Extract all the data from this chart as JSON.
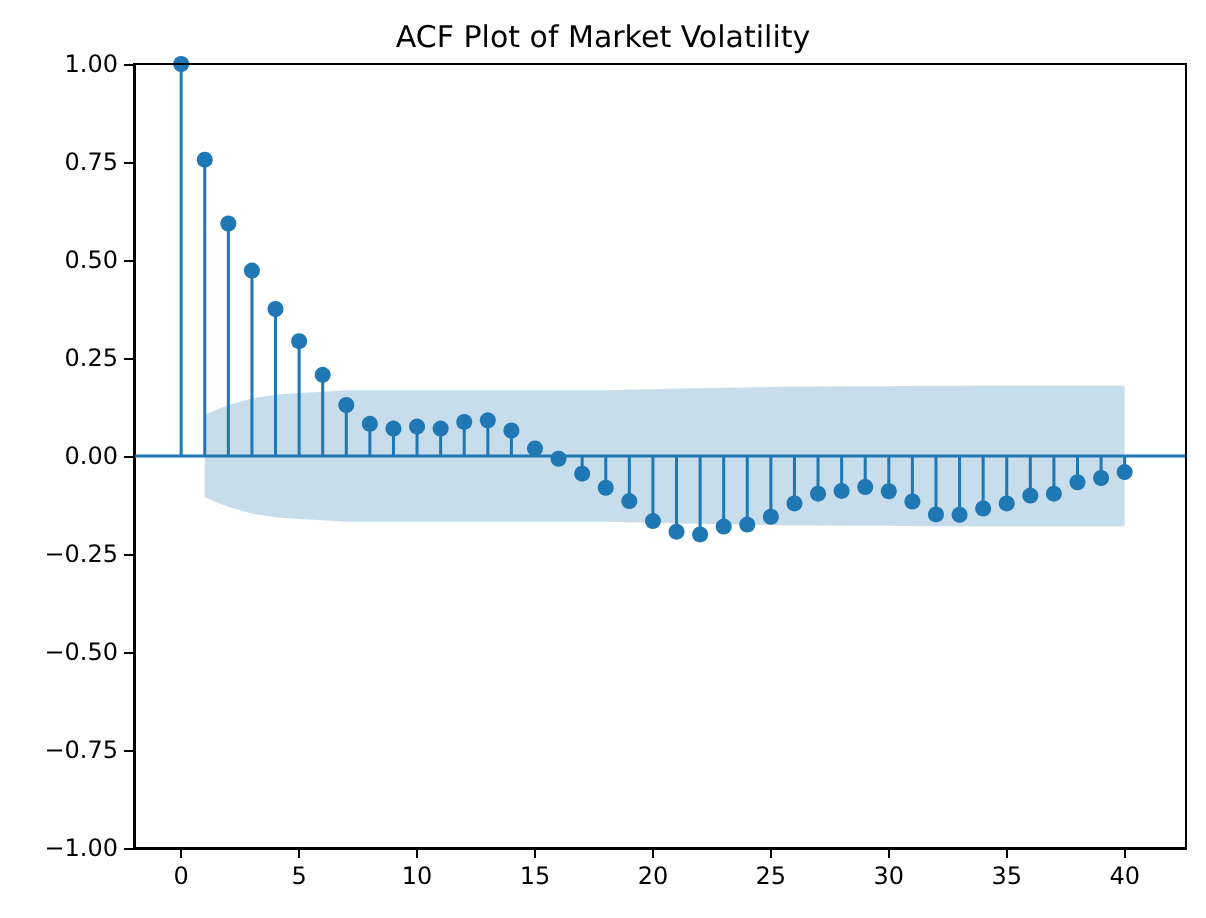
{
  "chart_data": {
    "type": "lollipop",
    "title": "ACF Plot of Market Volatility",
    "x": [
      0,
      1,
      2,
      3,
      4,
      5,
      6,
      7,
      8,
      9,
      10,
      11,
      12,
      13,
      14,
      15,
      16,
      17,
      18,
      19,
      20,
      21,
      22,
      23,
      24,
      25,
      26,
      27,
      28,
      29,
      30,
      31,
      32,
      33,
      34,
      35,
      36,
      37,
      38,
      39,
      40
    ],
    "series": [
      {
        "color": "#1f77b4",
        "values": [
          1.0,
          0.756,
          0.593,
          0.473,
          0.375,
          0.293,
          0.207,
          0.13,
          0.082,
          0.07,
          0.075,
          0.07,
          0.087,
          0.091,
          0.065,
          0.019,
          -0.007,
          -0.045,
          -0.081,
          -0.115,
          -0.166,
          -0.193,
          -0.2,
          -0.18,
          -0.175,
          -0.155,
          -0.121,
          -0.096,
          -0.089,
          -0.079,
          -0.09,
          -0.116,
          -0.149,
          -0.15,
          -0.134,
          -0.121,
          -0.101,
          -0.096,
          -0.067,
          -0.056,
          -0.041
        ],
        "upper": [
          null,
          0.105,
          0.13,
          0.147,
          0.156,
          0.161,
          0.164,
          0.168,
          0.168,
          0.168,
          0.168,
          0.168,
          0.168,
          0.168,
          0.168,
          0.168,
          0.168,
          0.168,
          0.168,
          0.169,
          0.17,
          0.172,
          0.173,
          0.174,
          0.175,
          0.176,
          0.177,
          0.177,
          0.178,
          0.178,
          0.178,
          0.179,
          0.179,
          0.179,
          0.18,
          0.18,
          0.18,
          0.18,
          0.18,
          0.18,
          0.18
        ],
        "lower": [
          null,
          -0.105,
          -0.13,
          -0.147,
          -0.156,
          -0.161,
          -0.164,
          -0.168,
          -0.168,
          -0.168,
          -0.168,
          -0.168,
          -0.168,
          -0.168,
          -0.168,
          -0.168,
          -0.168,
          -0.168,
          -0.168,
          -0.169,
          -0.17,
          -0.172,
          -0.173,
          -0.174,
          -0.175,
          -0.176,
          -0.177,
          -0.177,
          -0.178,
          -0.178,
          -0.178,
          -0.179,
          -0.179,
          -0.179,
          -0.18,
          -0.18,
          -0.18,
          -0.18,
          -0.18,
          -0.18,
          -0.18
        ]
      }
    ],
    "marker": "circle",
    "xlim": [
      -2,
      42.6
    ],
    "xticks": [
      0,
      5,
      10,
      15,
      20,
      25,
      30,
      35,
      40
    ],
    "ylim": [
      -1,
      1
    ],
    "yticks": [
      {
        "value": -1,
        "label": "−1.00"
      },
      {
        "value": -0.75,
        "label": "−0.75"
      },
      {
        "value": -0.5,
        "label": "−0.50"
      },
      {
        "value": -0.25,
        "label": "−0.25"
      },
      {
        "value": 0,
        "label": "0.00"
      },
      {
        "value": 0.25,
        "label": "0.25"
      },
      {
        "value": 0.5,
        "label": "0.50"
      },
      {
        "value": 0.75,
        "label": "0.75"
      },
      {
        "value": 1,
        "label": "1.00"
      }
    ],
    "ref_lines": [
      {
        "axis": "y",
        "value": 0,
        "color": "#1f77b4"
      }
    ],
    "grid": false
  }
}
